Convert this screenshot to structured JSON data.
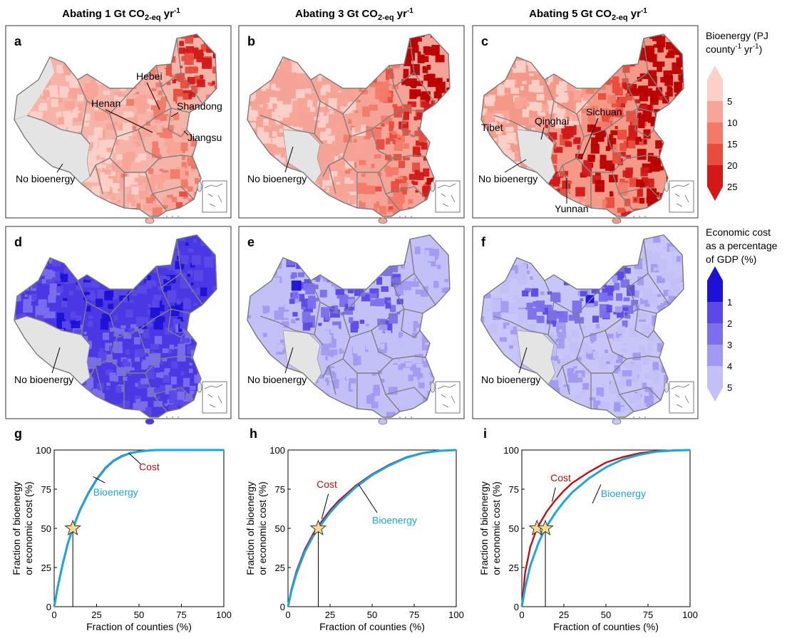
{
  "columns": [
    {
      "title_main": "Abating 1 Gt CO",
      "title_sub": "2-eq",
      "title_end": " yr",
      "title_sup": "-1"
    },
    {
      "title_main": "Abating 3 Gt CO",
      "title_sub": "2-eq",
      "title_end": " yr",
      "title_sup": "-1"
    },
    {
      "title_main": "Abating 5 Gt CO",
      "title_sub": "2-eq",
      "title_end": " yr",
      "title_sup": "-1"
    }
  ],
  "maps": [
    {
      "letter": "a",
      "row": 0,
      "col": 0,
      "colormap": "red",
      "labels": [
        "Hebei",
        "Henan",
        "Shandong",
        "Jiangsu",
        "No bioenergy"
      ]
    },
    {
      "letter": "b",
      "row": 0,
      "col": 1,
      "colormap": "red",
      "labels": [
        "No bioenergy"
      ]
    },
    {
      "letter": "c",
      "row": 0,
      "col": 2,
      "colormap": "red",
      "labels": [
        "Sichuan",
        "Qinghai",
        "Tibet",
        "No bioenergy",
        "Yunnan"
      ]
    },
    {
      "letter": "d",
      "row": 1,
      "col": 0,
      "colormap": "blue",
      "labels": [
        "No bioenergy"
      ]
    },
    {
      "letter": "e",
      "row": 1,
      "col": 1,
      "colormap": "blue",
      "labels": [
        "No bioenergy"
      ]
    },
    {
      "letter": "f",
      "row": 1,
      "col": 2,
      "colormap": "blue",
      "labels": [
        "No bioenergy"
      ]
    }
  ],
  "legend_bioenergy": {
    "title_line1": "Bioenergy (PJ",
    "title_line2_a": "county",
    "title_line2_sup1": "-1",
    "title_line2_b": " yr",
    "title_line2_sup2": "-1",
    "title_line2_c": ")",
    "ticks": [
      "5",
      "10",
      "15",
      "20",
      "25"
    ],
    "colors": [
      "#fbd0c8",
      "#f8a497",
      "#f27a68",
      "#e84c3c",
      "#d21818",
      "#bb0000"
    ]
  },
  "legend_cost": {
    "title_lines": [
      "Economic cost",
      "as a percentage",
      "of GDP (%)"
    ],
    "ticks": [
      "1",
      "2",
      "3",
      "4",
      "5"
    ],
    "colors": [
      "#1f10d8",
      "#5a49e6",
      "#7b6fec",
      "#a19af1",
      "#c3c0f7",
      "#dcdbfa"
    ]
  },
  "colors": {
    "bioenergy_line": "#1aa7e0",
    "cost_line": "#c40e0e",
    "star_fill": "#f7dc8c",
    "no_bioenergy": "#e4e4e4",
    "province_border": "#808080"
  },
  "chart_data": [
    {
      "type": "line",
      "letter": "g",
      "xlabel": "Fraction of counties (%)",
      "ylabel_lines": [
        "Fraction of bioenergy",
        "or economic cost (%)"
      ],
      "xlim": [
        0,
        100
      ],
      "ylim": [
        0,
        100
      ],
      "xticks": [
        0,
        25,
        50,
        75,
        100
      ],
      "yticks": [
        0,
        25,
        50,
        75,
        100
      ],
      "series": [
        {
          "name": "Bioenergy",
          "x": [
            0,
            2,
            5,
            8,
            11,
            15,
            20,
            25,
            30,
            35,
            40,
            45,
            50,
            55,
            60,
            70,
            80,
            90,
            100
          ],
          "y": [
            0,
            12,
            27,
            40,
            50,
            61,
            72,
            81,
            88,
            93,
            96,
            98,
            99,
            99.6,
            100,
            100,
            100,
            100,
            100
          ]
        },
        {
          "name": "Cost",
          "x": [
            0,
            2,
            5,
            8,
            11,
            15,
            20,
            25,
            30,
            35,
            40,
            45,
            50,
            55,
            60,
            70,
            80,
            90,
            100
          ],
          "y": [
            0,
            12.5,
            27.5,
            40.5,
            50.5,
            61.5,
            72.5,
            81.5,
            88.5,
            93.3,
            96.3,
            98.2,
            99.2,
            99.7,
            100,
            100,
            100,
            100,
            100
          ]
        }
      ],
      "star_points": [
        {
          "x": 11,
          "y": 50
        }
      ],
      "drop_lines_x": [
        11
      ]
    },
    {
      "type": "line",
      "letter": "h",
      "xlabel": "Fraction of counties (%)",
      "ylabel_lines": [
        "Fraction of bioenergy",
        "or economic cost (%)"
      ],
      "xlim": [
        0,
        100
      ],
      "ylim": [
        0,
        100
      ],
      "xticks": [
        0,
        25,
        50,
        75,
        100
      ],
      "yticks": [
        0,
        25,
        50,
        75,
        100
      ],
      "series": [
        {
          "name": "Bioenergy",
          "x": [
            0,
            2,
            5,
            10,
            15,
            18,
            25,
            30,
            40,
            50,
            60,
            70,
            80,
            90,
            100
          ],
          "y": [
            0,
            10,
            21,
            35,
            45,
            50,
            60,
            66,
            76,
            84,
            90,
            95,
            98,
            99.5,
            100
          ]
        },
        {
          "name": "Cost",
          "x": [
            0,
            2,
            5,
            10,
            15,
            18,
            25,
            30,
            40,
            50,
            60,
            70,
            80,
            90,
            100
          ],
          "y": [
            0,
            11,
            22.5,
            36.5,
            46.5,
            51.5,
            61.5,
            67.5,
            77,
            84.5,
            90.5,
            95.3,
            98.2,
            99.6,
            100
          ]
        }
      ],
      "star_points": [
        {
          "x": 18,
          "y": 50
        }
      ],
      "drop_lines_x": [
        18
      ]
    },
    {
      "type": "line",
      "letter": "i",
      "xlabel": "Fraction of counties (%)",
      "ylabel_lines": [
        "Fraction of bioenergy",
        "or economic cost (%)"
      ],
      "xlim": [
        0,
        100
      ],
      "ylim": [
        0,
        100
      ],
      "xticks": [
        0,
        25,
        50,
        75,
        100
      ],
      "yticks": [
        0,
        25,
        50,
        75,
        100
      ],
      "series": [
        {
          "name": "Bioenergy",
          "x": [
            0,
            2,
            5,
            10,
            14,
            20,
            25,
            30,
            40,
            50,
            60,
            70,
            80,
            90,
            100
          ],
          "y": [
            0,
            12,
            26,
            41,
            50,
            60,
            67,
            73,
            82,
            89,
            94,
            97,
            99,
            99.7,
            100
          ]
        },
        {
          "name": "Cost",
          "x": [
            0,
            2,
            5,
            9,
            15,
            20,
            25,
            30,
            40,
            50,
            60,
            70,
            80,
            90,
            100
          ],
          "y": [
            0,
            22,
            38,
            50,
            61,
            68,
            74,
            79,
            86,
            92,
            95.5,
            98,
            99.3,
            99.8,
            100
          ]
        }
      ],
      "star_points": [
        {
          "x": 9,
          "y": 50
        },
        {
          "x": 14,
          "y": 50
        }
      ],
      "drop_lines_x": [
        14
      ]
    }
  ]
}
